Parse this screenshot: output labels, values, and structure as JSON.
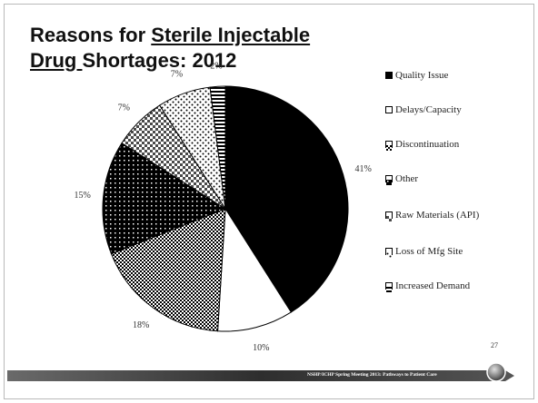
{
  "slide": {
    "title_line1_prefix": "Reasons for ",
    "title_line1_underlined": "Sterile Injectable",
    "title_line2_underlined": "Drug ",
    "title_line2_rest": "Shortages:  2012",
    "page_number": "27",
    "footer_text": "NSHP/ICHP Spring Meeting 2013: Pathways to Patient Care"
  },
  "chart_data": {
    "type": "pie",
    "title": "",
    "slices": [
      {
        "name": "Quality Issue",
        "value": 41,
        "label": "41%",
        "pattern": "solid-black"
      },
      {
        "name": "Delays/Capacity",
        "value": 10,
        "label": "10%",
        "pattern": "white"
      },
      {
        "name": "Discontinuation",
        "value": 18,
        "label": "18%",
        "pattern": "dense-check"
      },
      {
        "name": "Other",
        "value": 15,
        "label": "15%",
        "pattern": "black-dots"
      },
      {
        "name": "Raw Materials (API)",
        "value": 7,
        "label": "7%",
        "pattern": "light-check"
      },
      {
        "name": "Loss of Mfg Site",
        "value": 7,
        "label": "7%",
        "pattern": "sparse-dots"
      },
      {
        "name": "Increased Demand",
        "value": 2,
        "label": "2%",
        "pattern": "h-stripes"
      }
    ],
    "legend_placement": "right",
    "legend": [
      {
        "text": "Quality Issue",
        "pattern": "solid-black"
      },
      {
        "text": "Delays/Capacity",
        "pattern": "white"
      },
      {
        "text": "Discontinuation",
        "pattern": "dense-check"
      },
      {
        "text": "Other",
        "pattern": "black-dots"
      },
      {
        "text": "Raw Materials (API)",
        "pattern": "light-check"
      },
      {
        "text": "Loss of Mfg Site",
        "pattern": "sparse-dots"
      },
      {
        "text": "Increased Demand",
        "pattern": "h-stripes"
      }
    ]
  },
  "colors": {
    "slice_stroke": "#000000",
    "footer_bar": "#3b3b3b",
    "label_text": "#333333"
  }
}
